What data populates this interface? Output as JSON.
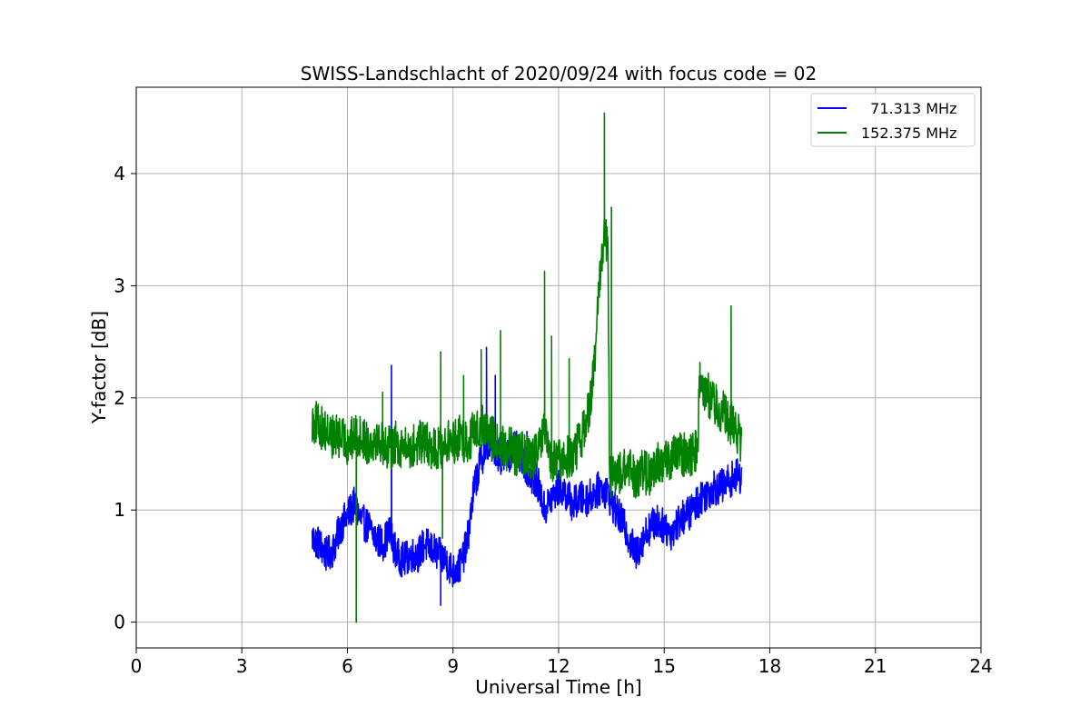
{
  "chart_data": {
    "type": "line",
    "title": "SWISS-Landschlacht of 2020/09/24 with focus code = 02",
    "xlabel": "Universal Time [h]",
    "ylabel": "Y-factor [dB]",
    "xlim": [
      0,
      24
    ],
    "ylim": [
      -0.23,
      4.77
    ],
    "xticks": [
      0,
      3,
      6,
      9,
      12,
      15,
      18,
      21,
      24
    ],
    "yticks": [
      0,
      1,
      2,
      3,
      4
    ],
    "grid": true,
    "legend_position": "top-right",
    "series": [
      {
        "name": "71.313 MHz",
        "legend_label": "  71.313 MHz",
        "color": "#0000ff",
        "x": [
          5.0,
          5.2,
          5.4,
          5.6,
          5.8,
          6.0,
          6.2,
          6.4,
          6.6,
          6.8,
          7.0,
          7.2,
          7.4,
          7.6,
          7.8,
          8.0,
          8.2,
          8.4,
          8.6,
          8.8,
          9.0,
          9.2,
          9.4,
          9.6,
          9.8,
          10.0,
          10.2,
          10.4,
          10.6,
          10.8,
          11.0,
          11.2,
          11.4,
          11.6,
          11.8,
          12.0,
          12.2,
          12.4,
          12.6,
          12.8,
          13.0,
          13.2,
          13.4,
          13.6,
          13.8,
          14.0,
          14.2,
          14.4,
          14.6,
          14.8,
          15.0,
          15.2,
          15.4,
          15.6,
          15.8,
          16.0,
          16.2,
          16.4,
          16.6,
          16.8,
          17.0,
          17.2
        ],
        "y": [
          0.75,
          0.7,
          0.6,
          0.65,
          0.85,
          0.95,
          1.05,
          0.9,
          0.85,
          0.75,
          0.7,
          0.8,
          0.6,
          0.55,
          0.6,
          0.6,
          0.7,
          0.65,
          0.6,
          0.55,
          0.45,
          0.5,
          0.7,
          1.2,
          1.45,
          1.6,
          1.55,
          1.45,
          1.5,
          1.55,
          1.45,
          1.3,
          1.25,
          1.0,
          1.1,
          1.2,
          1.15,
          1.05,
          1.1,
          1.1,
          1.15,
          1.2,
          1.15,
          1.0,
          0.9,
          0.75,
          0.6,
          0.75,
          0.85,
          0.9,
          0.85,
          0.8,
          0.9,
          0.95,
          1.0,
          1.1,
          1.15,
          1.2,
          1.2,
          1.25,
          1.3,
          1.3
        ],
        "band": 0.16,
        "spikes": [
          [
            7.25,
            2.29
          ],
          [
            8.65,
            0.15
          ],
          [
            9.95,
            2.45
          ],
          [
            6.25,
            0.9
          ],
          [
            10.2,
            2.2
          ],
          [
            11.1,
            1.7
          ]
        ]
      },
      {
        "name": "152.375 MHz",
        "legend_label": "152.375 MHz",
        "color": "#008000",
        "x": [
          5.0,
          5.2,
          5.4,
          5.6,
          5.8,
          6.0,
          6.2,
          6.4,
          6.6,
          6.8,
          7.0,
          7.2,
          7.4,
          7.6,
          7.8,
          8.0,
          8.2,
          8.4,
          8.6,
          8.8,
          9.0,
          9.2,
          9.4,
          9.6,
          9.8,
          10.0,
          10.2,
          10.4,
          10.6,
          10.8,
          11.0,
          11.2,
          11.4,
          11.6,
          11.8,
          12.0,
          12.2,
          12.4,
          12.6,
          12.8,
          13.0,
          13.2,
          13.3,
          13.4,
          13.45,
          13.6,
          13.8,
          14.0,
          14.2,
          14.4,
          14.6,
          14.8,
          15.0,
          15.2,
          15.4,
          15.6,
          15.8,
          15.95,
          16.0,
          16.2,
          16.4,
          16.6,
          16.8,
          17.0,
          17.2
        ],
        "y": [
          1.8,
          1.75,
          1.7,
          1.65,
          1.65,
          1.6,
          1.65,
          1.65,
          1.6,
          1.65,
          1.6,
          1.55,
          1.6,
          1.55,
          1.55,
          1.6,
          1.6,
          1.55,
          1.55,
          1.6,
          1.6,
          1.65,
          1.6,
          1.7,
          1.75,
          1.7,
          1.6,
          1.55,
          1.55,
          1.5,
          1.5,
          1.45,
          1.5,
          1.7,
          1.4,
          1.45,
          1.45,
          1.5,
          1.6,
          1.8,
          2.2,
          3.2,
          3.5,
          3.3,
          1.3,
          1.3,
          1.35,
          1.35,
          1.3,
          1.35,
          1.3,
          1.4,
          1.45,
          1.45,
          1.5,
          1.5,
          1.5,
          1.55,
          2.2,
          2.05,
          1.95,
          1.9,
          1.8,
          1.75,
          1.6
        ],
        "band": 0.2,
        "spikes": [
          [
            6.25,
            0.0
          ],
          [
            8.65,
            2.41
          ],
          [
            8.7,
            0.75
          ],
          [
            9.8,
            2.43
          ],
          [
            10.35,
            2.6
          ],
          [
            11.6,
            3.13
          ],
          [
            11.8,
            2.55
          ],
          [
            13.3,
            4.54
          ],
          [
            13.5,
            3.7
          ],
          [
            16.9,
            2.82
          ],
          [
            12.3,
            2.35
          ],
          [
            15.9,
            1.7
          ],
          [
            7.0,
            2.05
          ],
          [
            9.3,
            2.2
          ]
        ]
      }
    ]
  }
}
